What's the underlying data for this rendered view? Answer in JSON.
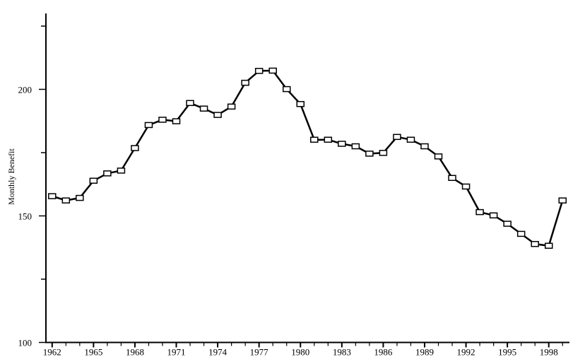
{
  "chart_data": {
    "type": "line",
    "title": "",
    "xlabel": "",
    "ylabel": "Monthly Benefit",
    "xlim": [
      1961.55,
      1999.5
    ],
    "ylim": [
      100,
      230
    ],
    "y_ticks_major": [
      100,
      150,
      200
    ],
    "y_ticks_minor": [
      125,
      175,
      225
    ],
    "x_tick_labels": [
      1962,
      1965,
      1968,
      1971,
      1974,
      1977,
      1980,
      1983,
      1986,
      1989,
      1992,
      1995,
      1998
    ],
    "x_ticks_every": 1,
    "grid": false,
    "marker": "square-open",
    "line_color": "#000000",
    "x": [
      1962,
      1963,
      1964,
      1965,
      1966,
      1967,
      1968,
      1969,
      1970,
      1971,
      1972,
      1973,
      1974,
      1975,
      1976,
      1977,
      1978,
      1979,
      1980,
      1981,
      1982,
      1983,
      1984,
      1985,
      1986,
      1987,
      1988,
      1989,
      1990,
      1991,
      1992,
      1993,
      1994,
      1995,
      1996,
      1997,
      1998,
      1999
    ],
    "values": [
      157.8,
      156.1,
      157.1,
      163.9,
      166.8,
      167.9,
      176.8,
      185.9,
      188.0,
      187.4,
      194.6,
      192.4,
      189.9,
      193.2,
      202.6,
      207.3,
      207.4,
      200.1,
      194.2,
      180.1,
      180.1,
      178.5,
      177.5,
      174.6,
      174.9,
      181.2,
      180.1,
      177.5,
      173.5,
      165.0,
      161.6,
      151.5,
      150.2,
      146.9,
      142.9,
      138.9,
      138.2,
      156.1
    ]
  }
}
